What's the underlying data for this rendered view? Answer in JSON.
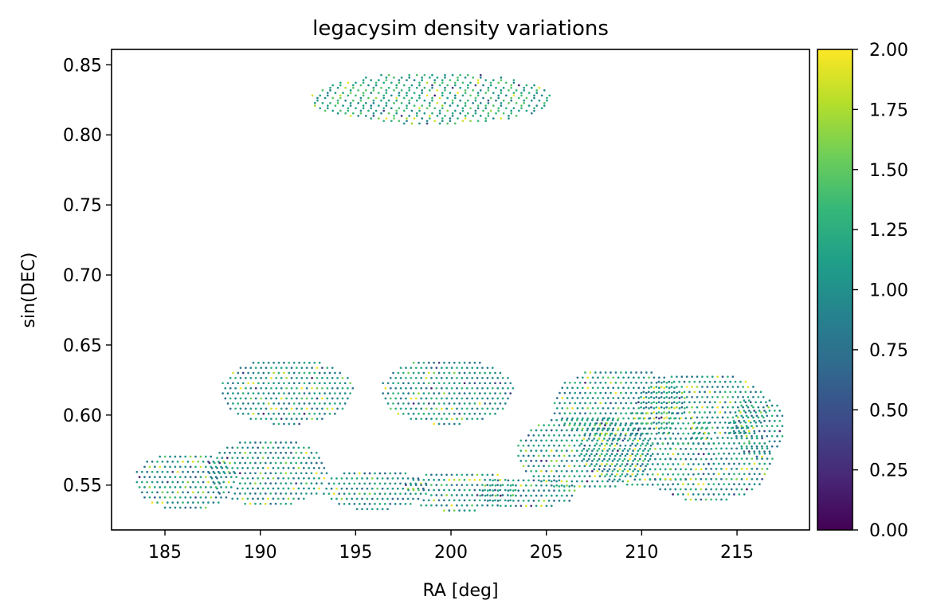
{
  "chart_data": {
    "type": "scatter",
    "title": "legacysim density variations",
    "xlabel": "RA [deg]",
    "ylabel": "sin(DEC)",
    "xlim": [
      182.2,
      218.8
    ],
    "ylim": [
      0.518,
      0.861
    ],
    "xticks": [
      185,
      190,
      195,
      200,
      205,
      210,
      215
    ],
    "xtick_labels": [
      "185",
      "190",
      "195",
      "200",
      "205",
      "210",
      "215"
    ],
    "yticks": [
      0.55,
      0.6,
      0.65,
      0.7,
      0.75,
      0.8,
      0.85
    ],
    "ytick_labels": [
      "0.55",
      "0.60",
      "0.65",
      "0.70",
      "0.75",
      "0.80",
      "0.85"
    ],
    "grid": false,
    "colorbar": {
      "cmap": "viridis",
      "vmin": 0.0,
      "vmax": 2.0,
      "ticks": [
        0.0,
        0.25,
        0.5,
        0.75,
        1.0,
        1.25,
        1.5,
        1.75,
        2.0
      ],
      "tick_labels": [
        "0.00",
        "0.25",
        "0.50",
        "0.75",
        "1.00",
        "1.25",
        "1.50",
        "1.75",
        "2.00"
      ],
      "stops": [
        "#440154",
        "#482878",
        "#3e4989",
        "#31688e",
        "#26828e",
        "#1f9e89",
        "#35b779",
        "#6ece58",
        "#b5de2b",
        "#fde725"
      ]
    },
    "regions": [
      {
        "shape": "ellipse",
        "ra_center": 199.0,
        "sindec_center": 0.826,
        "ra_halfwidth": 6.4,
        "sindec_halfheight": 0.0185,
        "mean_value": 1.2
      },
      {
        "shape": "ellipse",
        "ra_center": 191.4,
        "sindec_center": 0.617,
        "ra_halfwidth": 3.5,
        "sindec_halfheight": 0.024,
        "mean_value": 1.05
      },
      {
        "shape": "ellipse",
        "ra_center": 199.8,
        "sindec_center": 0.617,
        "ra_halfwidth": 3.5,
        "sindec_halfheight": 0.024,
        "mean_value": 1.05
      },
      {
        "shape": "ellipse",
        "ra_center": 186.1,
        "sindec_center": 0.553,
        "ra_halfwidth": 2.7,
        "sindec_halfheight": 0.021,
        "mean_value": 1.0
      },
      {
        "shape": "ellipse",
        "ra_center": 190.4,
        "sindec_center": 0.559,
        "ra_halfwidth": 3.2,
        "sindec_halfheight": 0.025,
        "mean_value": 1.0
      },
      {
        "shape": "ellipse",
        "ra_center": 196.0,
        "sindec_center": 0.547,
        "ra_halfwidth": 2.8,
        "sindec_halfheight": 0.015,
        "mean_value": 1.0
      },
      {
        "shape": "ellipse",
        "ra_center": 200.5,
        "sindec_center": 0.546,
        "ra_halfwidth": 3.0,
        "sindec_halfheight": 0.015,
        "mean_value": 1.0
      },
      {
        "shape": "ellipse",
        "ra_center": 204.0,
        "sindec_center": 0.545,
        "ra_halfwidth": 2.6,
        "sindec_halfheight": 0.012,
        "mean_value": 1.0
      },
      {
        "shape": "ellipse",
        "ra_center": 207.0,
        "sindec_center": 0.573,
        "ra_halfwidth": 3.6,
        "sindec_halfheight": 0.027,
        "mean_value": 1.05
      },
      {
        "shape": "ellipse",
        "ra_center": 208.8,
        "sindec_center": 0.608,
        "ra_halfwidth": 3.5,
        "sindec_halfheight": 0.026,
        "mean_value": 1.05
      },
      {
        "shape": "ellipse",
        "ra_center": 210.3,
        "sindec_center": 0.577,
        "ra_halfwidth": 3.6,
        "sindec_halfheight": 0.028,
        "mean_value": 1.05
      },
      {
        "shape": "ellipse",
        "ra_center": 213.2,
        "sindec_center": 0.606,
        "ra_halfwidth": 3.5,
        "sindec_halfheight": 0.025,
        "mean_value": 1.05
      },
      {
        "shape": "ellipse",
        "ra_center": 213.4,
        "sindec_center": 0.568,
        "ra_halfwidth": 3.5,
        "sindec_halfheight": 0.03,
        "mean_value": 1.05
      },
      {
        "shape": "ellipse",
        "ra_center": 216.1,
        "sindec_center": 0.592,
        "ra_halfwidth": 1.4,
        "sindec_halfheight": 0.022,
        "mean_value": 1.0
      }
    ]
  }
}
